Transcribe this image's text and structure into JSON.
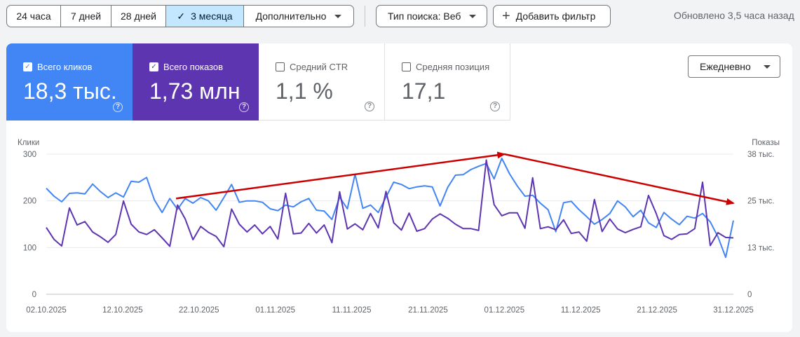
{
  "toolbar": {
    "ranges": [
      {
        "label": "24 часа",
        "selected": false
      },
      {
        "label": "7 дней",
        "selected": false
      },
      {
        "label": "28 дней",
        "selected": false
      },
      {
        "label": "3 месяца",
        "selected": true
      },
      {
        "label": "Дополнительно",
        "selected": false
      }
    ],
    "search_type_label": "Тип поиска: Веб",
    "add_filter_label": "Добавить фильтр",
    "updated_text": "Обновлено 3,5 часа назад"
  },
  "metrics": [
    {
      "label": "Всего кликов",
      "value": "18,3 тыс.",
      "checked": true,
      "color": "#4285f4"
    },
    {
      "label": "Всего показов",
      "value": "1,73 млн",
      "checked": true,
      "color": "#5e35b1"
    },
    {
      "label": "Средний CTR",
      "value": "1,1 %",
      "checked": false,
      "color": "#ffffff"
    },
    {
      "label": "Средняя позиция",
      "value": "17,1",
      "checked": false,
      "color": "#ffffff"
    }
  ],
  "granularity": {
    "selected": "Ежедневно"
  },
  "chart_data": {
    "type": "line",
    "left_axis_label": "Клики",
    "right_axis_label": "Показы",
    "left_ticks": [
      "0",
      "100",
      "200",
      "300"
    ],
    "right_ticks": [
      "0",
      "13 тыс.",
      "25 тыс.",
      "38 тыс."
    ],
    "left_range": [
      0,
      300
    ],
    "right_range": [
      0,
      38000
    ],
    "grid": true,
    "x_labels": [
      "02.10.2025",
      "12.10.2025",
      "22.10.2025",
      "01.11.2025",
      "11.11.2025",
      "21.11.2025",
      "01.12.2025",
      "11.12.2025",
      "21.12.2025",
      "31.12.2025"
    ],
    "x_start": "02.10.2025",
    "x_end": "31.12.2025",
    "series": [
      {
        "name": "Всего кликов",
        "axis": "left",
        "color": "#4285f4",
        "values": [
          227,
          210,
          198,
          216,
          217,
          215,
          236,
          220,
          207,
          217,
          208,
          242,
          240,
          250,
          202,
          175,
          205,
          182,
          205,
          195,
          207,
          200,
          180,
          207,
          235,
          197,
          200,
          200,
          197,
          183,
          179,
          191,
          187,
          198,
          205,
          180,
          178,
          160,
          208,
          183,
          257,
          184,
          191,
          175,
          208,
          240,
          235,
          226,
          230,
          232,
          230,
          189,
          229,
          255,
          256,
          267,
          274,
          280,
          247,
          291,
          258,
          232,
          210,
          212,
          195,
          181,
          134,
          196,
          199,
          181,
          166,
          150,
          160,
          173,
          200,
          187,
          166,
          180,
          153,
          143,
          175,
          161,
          149,
          167,
          163,
          173,
          155,
          123,
          79,
          158
        ],
        "counts": {
          "clicks": 18300
        }
      },
      {
        "name": "Всего показов",
        "axis": "right",
        "color": "#5e35b1",
        "values": [
          18100,
          14900,
          13100,
          23400,
          18800,
          19700,
          16900,
          15600,
          14100,
          16200,
          25300,
          19000,
          16900,
          16200,
          17500,
          15300,
          13000,
          24200,
          20400,
          14800,
          18400,
          16800,
          15700,
          12900,
          23100,
          19000,
          16900,
          18800,
          16400,
          18400,
          15000,
          27400,
          16400,
          16600,
          19200,
          16600,
          18800,
          14000,
          27800,
          17700,
          19100,
          17500,
          21900,
          18000,
          27900,
          19400,
          17400,
          22000,
          17100,
          17800,
          20400,
          21800,
          20600,
          19000,
          17800,
          17800,
          17300,
          36400,
          24300,
          21300,
          22100,
          22100,
          17900,
          31600,
          17800,
          18300,
          17500,
          20200,
          16500,
          16900,
          14400,
          25700,
          17000,
          20400,
          17700,
          16700,
          17600,
          18300,
          26800,
          21900,
          15900,
          14900,
          16200,
          16400,
          17800,
          30400,
          13200,
          16700,
          15400,
          15300
        ]
      }
    ],
    "annotations": [
      {
        "type": "arrow",
        "color": "#cc0000",
        "from": {
          "x": "19.10.2025",
          "y": 205
        },
        "to": {
          "x": "01.12.2025",
          "y": 300
        }
      },
      {
        "type": "arrow",
        "color": "#cc0000",
        "from": {
          "x": "01.12.2025",
          "y": 300
        },
        "to": {
          "x": "31.12.2025",
          "y": 195
        }
      }
    ]
  }
}
